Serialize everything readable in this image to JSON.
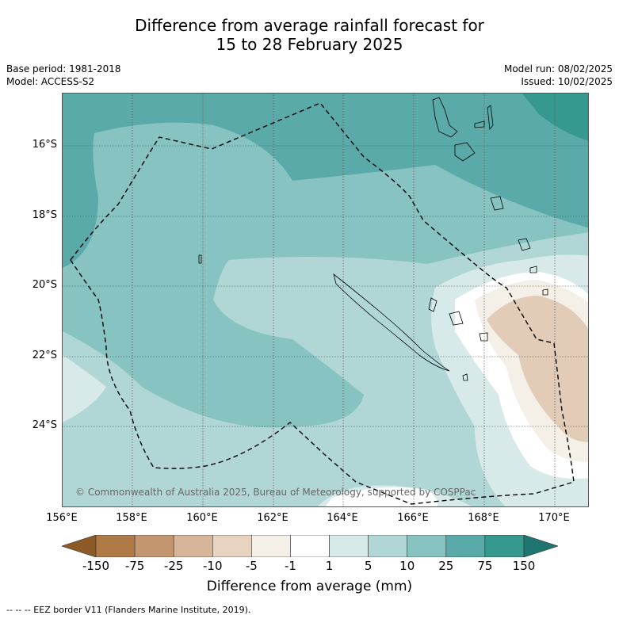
{
  "title": {
    "line1": "Difference from average rainfall forecast for",
    "line2": "15 to 28 February 2025"
  },
  "meta": {
    "base_period": "Base period: 1981-2018",
    "model": "Model: ACCESS-S2",
    "model_run": "Model run: 08/02/2025",
    "issued": "Issued: 10/02/2025"
  },
  "map": {
    "lat_labels": [
      "16°S",
      "18°S",
      "20°S",
      "22°S",
      "24°S"
    ],
    "lon_labels": [
      "156°E",
      "158°E",
      "160°E",
      "162°E",
      "164°E",
      "166°E",
      "168°E",
      "170°E"
    ],
    "copyright": "© Commonwealth of Australia 2025, Bureau of Meteorology, supported by COSPPac"
  },
  "colorbar": {
    "ticks": [
      "-150",
      "-75",
      "-25",
      "-10",
      "-5",
      "-1",
      "1",
      "5",
      "10",
      "25",
      "75",
      "150"
    ],
    "colors": [
      "#8c5a26",
      "#b07a46",
      "#c49670",
      "#d6b599",
      "#e7d3c0",
      "#f4efe7",
      "#ffffff",
      "#d7eae9",
      "#b0d7d6",
      "#86c3c1",
      "#5aaaa9",
      "#35998f",
      "#1f7670"
    ],
    "label": "Difference from average (mm)"
  },
  "footer": "--  --  -- EEZ border V11 (Flanders Marine Institute, 2019)."
}
